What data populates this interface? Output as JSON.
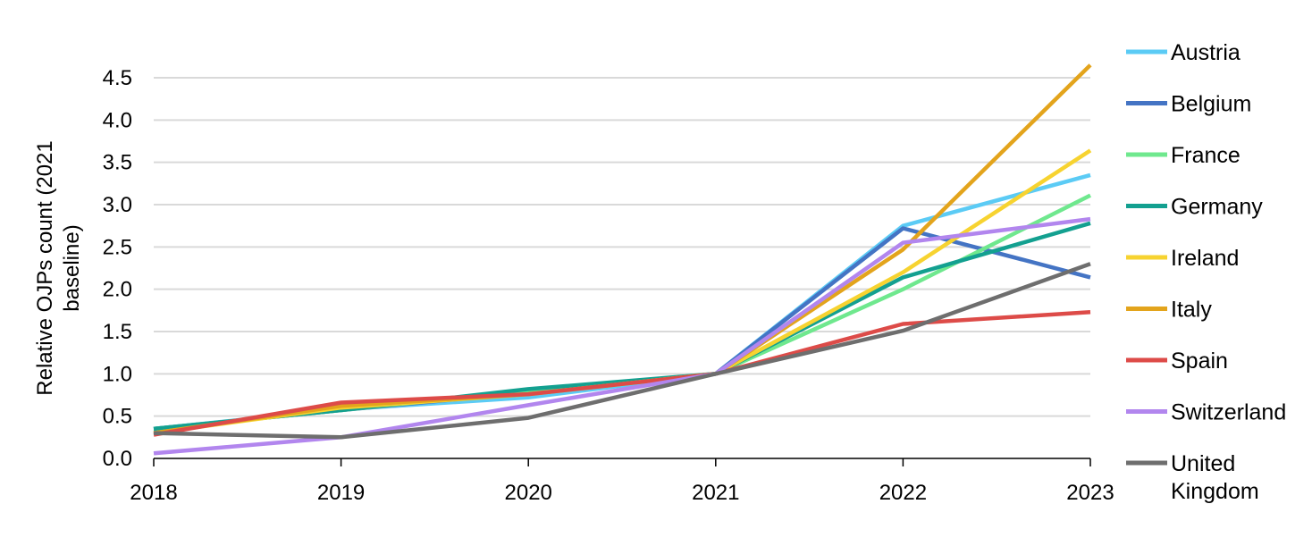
{
  "chart_data": {
    "type": "line",
    "title": "",
    "xlabel": "",
    "ylabel": "Relative OJPs count (2021 baseline)",
    "ylabel_lines": [
      "Relative OJPs count (2021",
      "baseline)"
    ],
    "x": [
      "2018",
      "2019",
      "2020",
      "2021",
      "2022",
      "2023"
    ],
    "ylim": [
      0,
      4.5
    ],
    "yticks": [
      "0.0",
      "0.5",
      "1.0",
      "1.5",
      "2.0",
      "2.5",
      "3.0",
      "3.5",
      "4.0",
      "4.5"
    ],
    "grid": true,
    "legend_position": "right",
    "series": [
      {
        "name": "Austria",
        "name_lines": [
          "Austria"
        ],
        "color": "#5BCBF5",
        "values": [
          0.35,
          0.58,
          0.72,
          1.0,
          2.75,
          3.35
        ]
      },
      {
        "name": "Belgium",
        "name_lines": [
          "Belgium"
        ],
        "color": "#4474C4",
        "values": [
          0.35,
          0.57,
          0.78,
          1.0,
          2.72,
          2.14
        ]
      },
      {
        "name": "France",
        "name_lines": [
          "France"
        ],
        "color": "#6FE88E",
        "values": [
          0.35,
          0.57,
          0.8,
          1.0,
          2.0,
          3.11
        ]
      },
      {
        "name": "Germany",
        "name_lines": [
          "Germany"
        ],
        "color": "#13A090",
        "values": [
          0.35,
          0.57,
          0.82,
          1.0,
          2.14,
          2.78
        ]
      },
      {
        "name": "Ireland",
        "name_lines": [
          "Ireland"
        ],
        "color": "#F7D330",
        "values": [
          0.3,
          0.6,
          0.76,
          1.0,
          2.2,
          3.64
        ]
      },
      {
        "name": "Italy",
        "name_lines": [
          "Italy"
        ],
        "color": "#E3A41C",
        "values": [
          0.3,
          0.62,
          0.76,
          1.0,
          2.47,
          4.65
        ]
      },
      {
        "name": "Spain",
        "name_lines": [
          "Spain"
        ],
        "color": "#DD4B48",
        "values": [
          0.28,
          0.66,
          0.76,
          1.0,
          1.59,
          1.73
        ]
      },
      {
        "name": "Switzerland",
        "name_lines": [
          "Switzerland"
        ],
        "color": "#B286EE",
        "values": [
          0.06,
          0.25,
          0.63,
          1.0,
          2.55,
          2.83
        ]
      },
      {
        "name": "United Kingdom",
        "name_lines": [
          "United",
          "Kingdom"
        ],
        "color": "#6E6E6E",
        "values": [
          0.3,
          0.25,
          0.48,
          1.0,
          1.51,
          2.3
        ]
      }
    ]
  }
}
